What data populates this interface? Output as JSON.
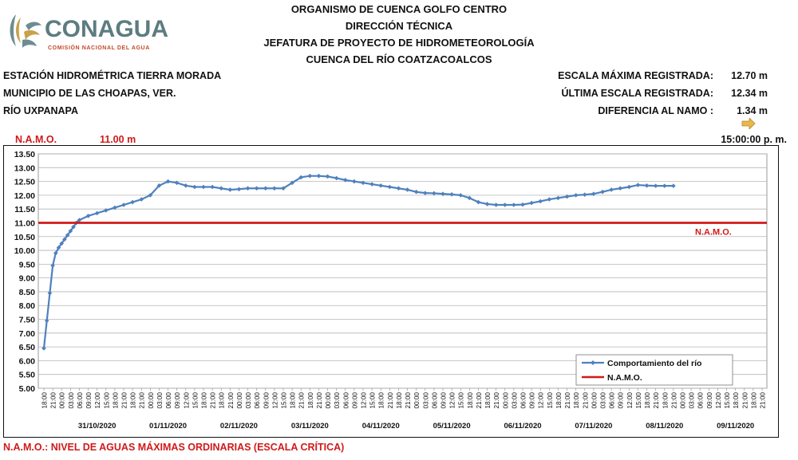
{
  "org": {
    "name": "CONAGUA",
    "subtitle": "COMISIÓN NACIONAL DEL AGUA",
    "header_lines": [
      "ORGANISMO DE CUENCA GOLFO CENTRO",
      "DIRECCIÓN TÉCNICA",
      "JEFATURA DE PROYECTO DE HIDROMETEOROLOGÍA",
      "CUENCA DEL RÍO COATZACOALCOS"
    ]
  },
  "station": {
    "line1": "ESTACIÓN HIDROMÉTRICA TIERRA MORADA",
    "line2": "MUNICIPIO DE LAS CHOAPAS, VER.",
    "line3": "RÍO UXPANAPA"
  },
  "stats": {
    "max_label": "ESCALA MÁXIMA REGISTRADA:",
    "max_value": "12.70 m",
    "last_label": "ÚLTIMA ESCALA REGISTRADA:",
    "last_value": "12.34 m",
    "diff_label": "DIFERENCIA AL NAMO :",
    "diff_value": "1.34 m",
    "time": "15:00:00 p. m.",
    "trend_icon": "arrow-right-icon"
  },
  "namo": {
    "label": "N.A.M.O.",
    "value": "11.00 m",
    "footer": "N.A.M.O.: NIVEL DE AGUAS MÁXIMAS ORDINARIAS (ESCALA CRÍTICA)"
  },
  "colors": {
    "series": "#4f81bd",
    "namo": "#d11919",
    "logo_text": "#5d7c80"
  },
  "chart_data": {
    "type": "line",
    "ylim": [
      5.0,
      13.5
    ],
    "y_ticks": [
      "5.00",
      "5.50",
      "6.00",
      "6.50",
      "7.00",
      "7.50",
      "8.00",
      "8.50",
      "9.00",
      "9.50",
      "10.00",
      "10.50",
      "11.00",
      "11.50",
      "12.00",
      "12.50",
      "13.00",
      "13.50"
    ],
    "x_tick_labels": [
      "18:00",
      "21:00",
      "00:00",
      "03:00",
      "06:00",
      "09:00",
      "12:00",
      "15:00",
      "18:00",
      "21:00"
    ],
    "dates": [
      "31/10/2020",
      "01/11/2020",
      "02/11/2020",
      "03/11/2020",
      "04/11/2020",
      "05/11/2020",
      "06/11/2020",
      "07/11/2020",
      "08/11/2020",
      "09/11/2020"
    ],
    "x_start": "30/10/2020 18:00",
    "x_end": "09/11/2020 21:00",
    "series": [
      {
        "name": "Comportamiento del río",
        "points": [
          [
            "30/10 18:00",
            6.45
          ],
          [
            "30/10 19:00",
            7.45
          ],
          [
            "30/10 20:00",
            8.45
          ],
          [
            "30/10 21:00",
            9.45
          ],
          [
            "30/10 22:00",
            9.9
          ],
          [
            "30/10 23:00",
            10.1
          ],
          [
            "31/10 00:00",
            10.25
          ],
          [
            "31/10 01:00",
            10.4
          ],
          [
            "31/10 02:00",
            10.55
          ],
          [
            "31/10 03:00",
            10.7
          ],
          [
            "31/10 04:00",
            10.85
          ],
          [
            "31/10 05:00",
            11.0
          ],
          [
            "31/10 06:00",
            11.1
          ],
          [
            "31/10 09:00",
            11.25
          ],
          [
            "31/10 12:00",
            11.35
          ],
          [
            "31/10 15:00",
            11.45
          ],
          [
            "31/10 18:00",
            11.55
          ],
          [
            "31/10 21:00",
            11.65
          ],
          [
            "01/11 00:00",
            11.75
          ],
          [
            "01/11 03:00",
            11.85
          ],
          [
            "01/11 06:00",
            12.0
          ],
          [
            "01/11 09:00",
            12.35
          ],
          [
            "01/11 12:00",
            12.5
          ],
          [
            "01/11 15:00",
            12.45
          ],
          [
            "01/11 18:00",
            12.35
          ],
          [
            "01/11 21:00",
            12.3
          ],
          [
            "02/11 00:00",
            12.3
          ],
          [
            "02/11 03:00",
            12.3
          ],
          [
            "02/11 06:00",
            12.25
          ],
          [
            "02/11 09:00",
            12.2
          ],
          [
            "02/11 12:00",
            12.22
          ],
          [
            "02/11 15:00",
            12.25
          ],
          [
            "02/11 18:00",
            12.25
          ],
          [
            "02/11 21:00",
            12.25
          ],
          [
            "03/11 00:00",
            12.25
          ],
          [
            "03/11 03:00",
            12.25
          ],
          [
            "03/11 06:00",
            12.45
          ],
          [
            "03/11 09:00",
            12.65
          ],
          [
            "03/11 12:00",
            12.7
          ],
          [
            "03/11 15:00",
            12.7
          ],
          [
            "03/11 18:00",
            12.68
          ],
          [
            "03/11 21:00",
            12.62
          ],
          [
            "04/11 00:00",
            12.55
          ],
          [
            "04/11 03:00",
            12.5
          ],
          [
            "04/11 06:00",
            12.45
          ],
          [
            "04/11 09:00",
            12.4
          ],
          [
            "04/11 12:00",
            12.35
          ],
          [
            "04/11 15:00",
            12.3
          ],
          [
            "04/11 18:00",
            12.25
          ],
          [
            "04/11 21:00",
            12.2
          ],
          [
            "05/11 00:00",
            12.12
          ],
          [
            "05/11 03:00",
            12.08
          ],
          [
            "05/11 06:00",
            12.07
          ],
          [
            "05/11 09:00",
            12.05
          ],
          [
            "05/11 12:00",
            12.03
          ],
          [
            "05/11 15:00",
            12.0
          ],
          [
            "05/11 18:00",
            11.9
          ],
          [
            "05/11 21:00",
            11.75
          ],
          [
            "06/11 00:00",
            11.68
          ],
          [
            "06/11 03:00",
            11.65
          ],
          [
            "06/11 06:00",
            11.65
          ],
          [
            "06/11 09:00",
            11.65
          ],
          [
            "06/11 12:00",
            11.66
          ],
          [
            "06/11 15:00",
            11.72
          ],
          [
            "06/11 18:00",
            11.78
          ],
          [
            "06/11 21:00",
            11.85
          ],
          [
            "07/11 00:00",
            11.9
          ],
          [
            "07/11 03:00",
            11.95
          ],
          [
            "07/11 06:00",
            12.0
          ],
          [
            "07/11 09:00",
            12.02
          ],
          [
            "07/11 12:00",
            12.05
          ],
          [
            "07/11 15:00",
            12.12
          ],
          [
            "07/11 18:00",
            12.2
          ],
          [
            "07/11 21:00",
            12.25
          ],
          [
            "08/11 00:00",
            12.3
          ],
          [
            "08/11 03:00",
            12.37
          ],
          [
            "08/11 06:00",
            12.35
          ],
          [
            "08/11 09:00",
            12.34
          ],
          [
            "08/11 12:00",
            12.34
          ],
          [
            "08/11 15:00",
            12.34
          ]
        ]
      },
      {
        "name": "N.A.M.O.",
        "value": 11.0
      }
    ],
    "legend_position": "bottom-right",
    "inline_label": "N.A.M.O."
  }
}
